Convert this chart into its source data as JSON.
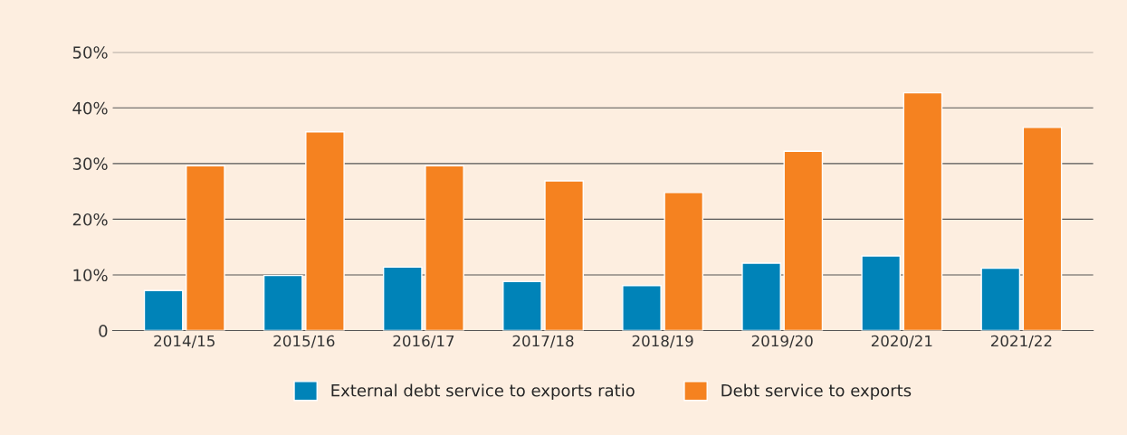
{
  "chart_data": {
    "type": "bar",
    "categories": [
      "2014/15",
      "2015/16",
      "2016/17",
      "2017/18",
      "2018/19",
      "2019/20",
      "2020/21",
      "2021/22"
    ],
    "series": [
      {
        "name": "External debt service to exports ratio",
        "color": "#0083b8",
        "values": [
          7.2,
          9.9,
          11.4,
          8.8,
          8.1,
          12.1,
          13.4,
          11.2
        ]
      },
      {
        "name": "Debt service to exports",
        "color": "#f58220",
        "values": [
          29.6,
          35.7,
          29.6,
          26.9,
          24.8,
          32.2,
          42.7,
          36.5
        ]
      }
    ],
    "ylim": [
      0,
      50
    ],
    "yticks": [
      {
        "value": 0,
        "label": "0"
      },
      {
        "value": 10,
        "label": "10%"
      },
      {
        "value": 20,
        "label": "20%"
      },
      {
        "value": 30,
        "label": "30%"
      },
      {
        "value": 40,
        "label": "40%"
      },
      {
        "value": 50,
        "label": "50%"
      }
    ],
    "grid": "y",
    "legend": "bottom"
  }
}
